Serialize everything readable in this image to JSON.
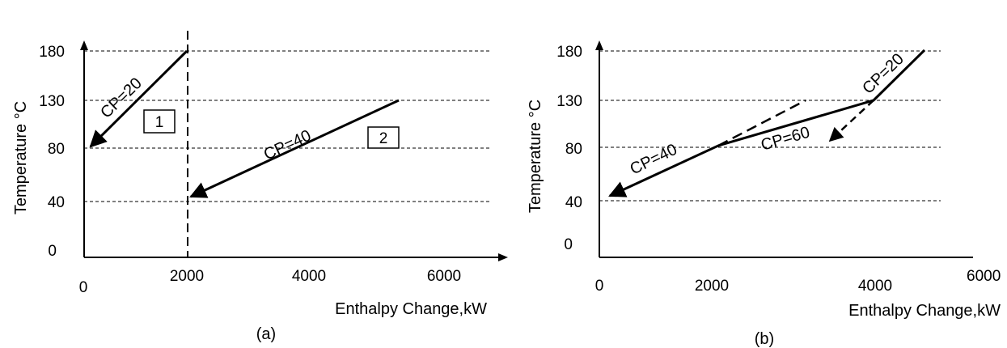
{
  "panels": [
    {
      "id": "a",
      "caption": "(a)",
      "xlabel": "Enthalpy Change,kW",
      "ylabel": "Temperature °C",
      "xticks": [
        "0",
        "2000",
        "4000",
        "6000"
      ],
      "yticks": [
        "0",
        "40",
        "80",
        "130",
        "180"
      ],
      "curves": [
        {
          "label": "CP=20",
          "from": [
            2000,
            180
          ],
          "to": [
            0,
            80
          ],
          "style": "solid",
          "arrow": "end"
        },
        {
          "label": "CP=40",
          "from": [
            5400,
            130
          ],
          "to": [
            2000,
            40
          ],
          "style": "solid",
          "arrow": "end"
        }
      ],
      "vline": {
        "x": 2000,
        "style": "dashed"
      },
      "boxes": [
        {
          "text": "1",
          "near": [
            1520,
            118
          ]
        },
        {
          "text": "2",
          "near": [
            5440,
            83
          ]
        }
      ]
    },
    {
      "id": "b",
      "caption": "(b)",
      "xlabel": "Enthalpy Change,kW",
      "ylabel": "Temperature °C",
      "xticks": [
        "0",
        "2000",
        "4000",
        "6000"
      ],
      "yticks": [
        "0",
        "40",
        "80",
        "130",
        "180"
      ],
      "composite_curve": [
        [
          0,
          40
        ],
        [
          2000,
          80
        ],
        [
          4200,
          130
        ],
        [
          5000,
          180
        ]
      ],
      "segment_labels": [
        "CP=40",
        "CP=60",
        "CP=20"
      ],
      "dashed_lines": [
        {
          "from": [
            2000,
            80
          ],
          "to": [
            3300,
            130
          ]
        },
        {
          "from": [
            4200,
            130
          ],
          "to": [
            3600,
            80
          ],
          "arrow": "end"
        }
      ]
    }
  ]
}
